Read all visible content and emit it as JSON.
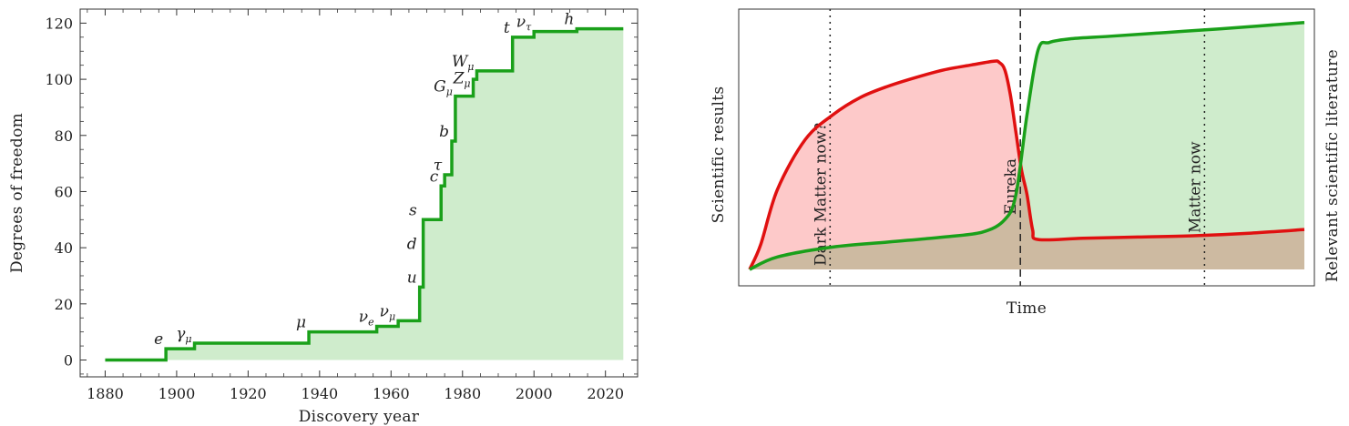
{
  "chart_data": [
    {
      "type": "line",
      "step": "post",
      "xlabel": "Discovery year",
      "ylabel": "Degrees of freedom",
      "xlim": [
        1873,
        2029
      ],
      "ylim": [
        -6,
        125
      ],
      "xticks": [
        1880,
        1900,
        1920,
        1940,
        1960,
        1980,
        2000,
        2020
      ],
      "yticks": [
        0,
        20,
        40,
        60,
        80,
        100,
        120
      ],
      "grid": false,
      "fill_under": true,
      "line_color": "#1aa01a",
      "fill_color": "#cfeccc",
      "series": [
        {
          "x": [
            1880,
            1897,
            1905,
            1937,
            1956,
            1962,
            1968,
            1969,
            1974,
            1975,
            1977,
            1978,
            1983,
            1984,
            1994,
            2000,
            2012,
            2025
          ],
          "y": [
            0,
            4,
            6,
            10,
            12,
            14,
            26,
            50,
            62,
            66,
            78,
            94,
            100,
            103,
            115,
            117,
            118,
            118
          ]
        }
      ],
      "annotations": [
        {
          "text": "e",
          "sub": "",
          "x": 1897,
          "y": 4
        },
        {
          "text": "γ",
          "sub": "μ",
          "x": 1905,
          "y": 6
        },
        {
          "text": "μ",
          "sub": "",
          "x": 1937,
          "y": 10
        },
        {
          "text": "ν",
          "sub": "e",
          "x": 1956,
          "y": 12
        },
        {
          "text": "ν",
          "sub": "μ",
          "x": 1962,
          "y": 14
        },
        {
          "text": "u",
          "sub": "",
          "x": 1968,
          "y": 26
        },
        {
          "text": "d",
          "sub": "",
          "x": 1968,
          "y": 38
        },
        {
          "text": "s",
          "sub": "",
          "x": 1968,
          "y": 50
        },
        {
          "text": "c",
          "sub": "",
          "x": 1974,
          "y": 62
        },
        {
          "text": "τ",
          "sub": "",
          "x": 1975,
          "y": 66
        },
        {
          "text": "b",
          "sub": "",
          "x": 1977,
          "y": 78
        },
        {
          "text": "G",
          "sub": "μ",
          "x": 1978,
          "y": 94
        },
        {
          "text": "Z",
          "sub": "μ",
          "x": 1983,
          "y": 97
        },
        {
          "text": "W",
          "sub": "μ",
          "x": 1984,
          "y": 103
        },
        {
          "text": "t",
          "sub": "",
          "x": 1994,
          "y": 115
        },
        {
          "text": "ν",
          "sub": "τ",
          "x": 2000,
          "y": 117
        },
        {
          "text": "h",
          "sub": "",
          "x": 2012,
          "y": 118
        }
      ]
    },
    {
      "type": "area",
      "xlabel": "Time",
      "ylabel_left": "Scientific results",
      "ylabel_right": "Relevant scientific literature",
      "ylabel_left_color": "#1aa01a",
      "ylabel_right_color": "#e01010",
      "xlim": [
        0,
        1
      ],
      "ylim": [
        0,
        1
      ],
      "axis_ticks": false,
      "series": [
        {
          "color": "#1aa01a",
          "fill_color": "#cfeccc",
          "x": [
            0,
            0.05,
            0.15,
            0.25,
            0.35,
            0.42,
            0.46,
            0.48,
            0.5,
            0.52,
            0.54,
            0.58,
            0.65,
            0.75,
            0.85,
            1.0
          ],
          "y": [
            0.0,
            0.05,
            0.09,
            0.11,
            0.13,
            0.15,
            0.2,
            0.3,
            0.62,
            0.88,
            0.91,
            0.925,
            0.935,
            0.95,
            0.965,
            0.99
          ]
        },
        {
          "color": "#e01010",
          "fill_color": "#fdc9c9",
          "x": [
            0,
            0.02,
            0.05,
            0.1,
            0.15,
            0.2,
            0.25,
            0.3,
            0.35,
            0.4,
            0.44,
            0.45,
            0.46,
            0.47,
            0.48,
            0.49,
            0.5,
            0.51,
            0.52,
            0.6,
            0.7,
            0.8,
            0.9,
            1.0
          ],
          "y": [
            0.0,
            0.1,
            0.32,
            0.52,
            0.62,
            0.69,
            0.735,
            0.77,
            0.8,
            0.82,
            0.835,
            0.83,
            0.8,
            0.7,
            0.55,
            0.4,
            0.3,
            0.16,
            0.12,
            0.125,
            0.13,
            0.135,
            0.145,
            0.16
          ]
        }
      ],
      "overlap_fill_color": "#cbc5a5",
      "vlines": [
        {
          "x": 0.145,
          "style": "dotted",
          "label": "Dark Matter now?"
        },
        {
          "x": 0.488,
          "style": "dashed",
          "label": "Eureka"
        },
        {
          "x": 0.82,
          "style": "dotted",
          "label": "Matter now"
        }
      ]
    }
  ]
}
